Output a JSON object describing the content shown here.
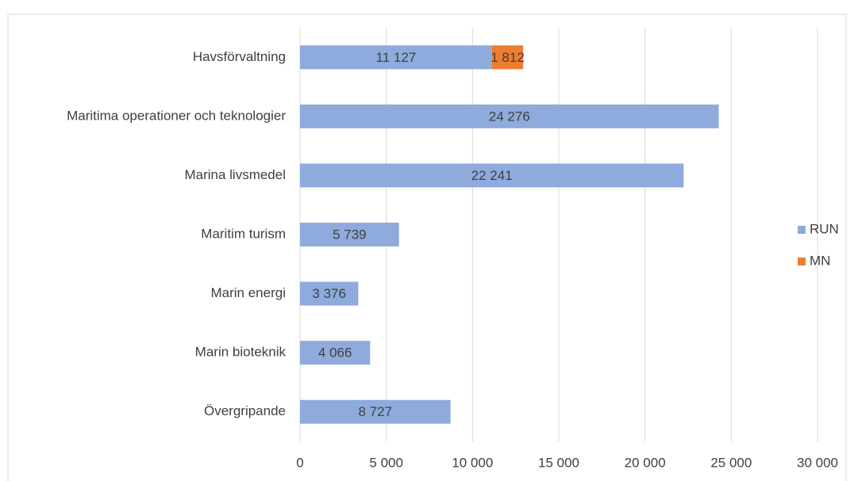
{
  "chart_data": {
    "type": "stacked-bar-horizontal",
    "categories": [
      "Havsförvaltning",
      "Maritima operationer och teknologier",
      "Marina livsmedel",
      "Maritim turism",
      "Marin energi",
      "Marin bioteknik",
      "Övergripande"
    ],
    "series": [
      {
        "name": "RUN",
        "color": "#8faadc",
        "values": [
          11127,
          24276,
          22241,
          5739,
          3376,
          4066,
          8727
        ],
        "value_labels": [
          "11 127",
          "24 276",
          "22 241",
          "5 739",
          "3 376",
          "4 066",
          "8 727"
        ]
      },
      {
        "name": "MN",
        "color": "#ed7d31",
        "values": [
          1812,
          null,
          null,
          null,
          null,
          null,
          null
        ],
        "value_labels": [
          "1 812",
          null,
          null,
          null,
          null,
          null,
          null
        ]
      }
    ],
    "xlim": [
      0,
      30000
    ],
    "xticks": [
      0,
      {
        "value": 5000,
        "label": "5 000"
      },
      {
        "value": 10000,
        "label": "10 000"
      },
      {
        "value": 15000,
        "label": "15 000"
      },
      {
        "value": 20000,
        "label": "20 000"
      },
      {
        "value": 25000,
        "label": "25 000"
      },
      {
        "value": 30000,
        "label": "30 000"
      }
    ],
    "grid": true,
    "legend": "right"
  }
}
